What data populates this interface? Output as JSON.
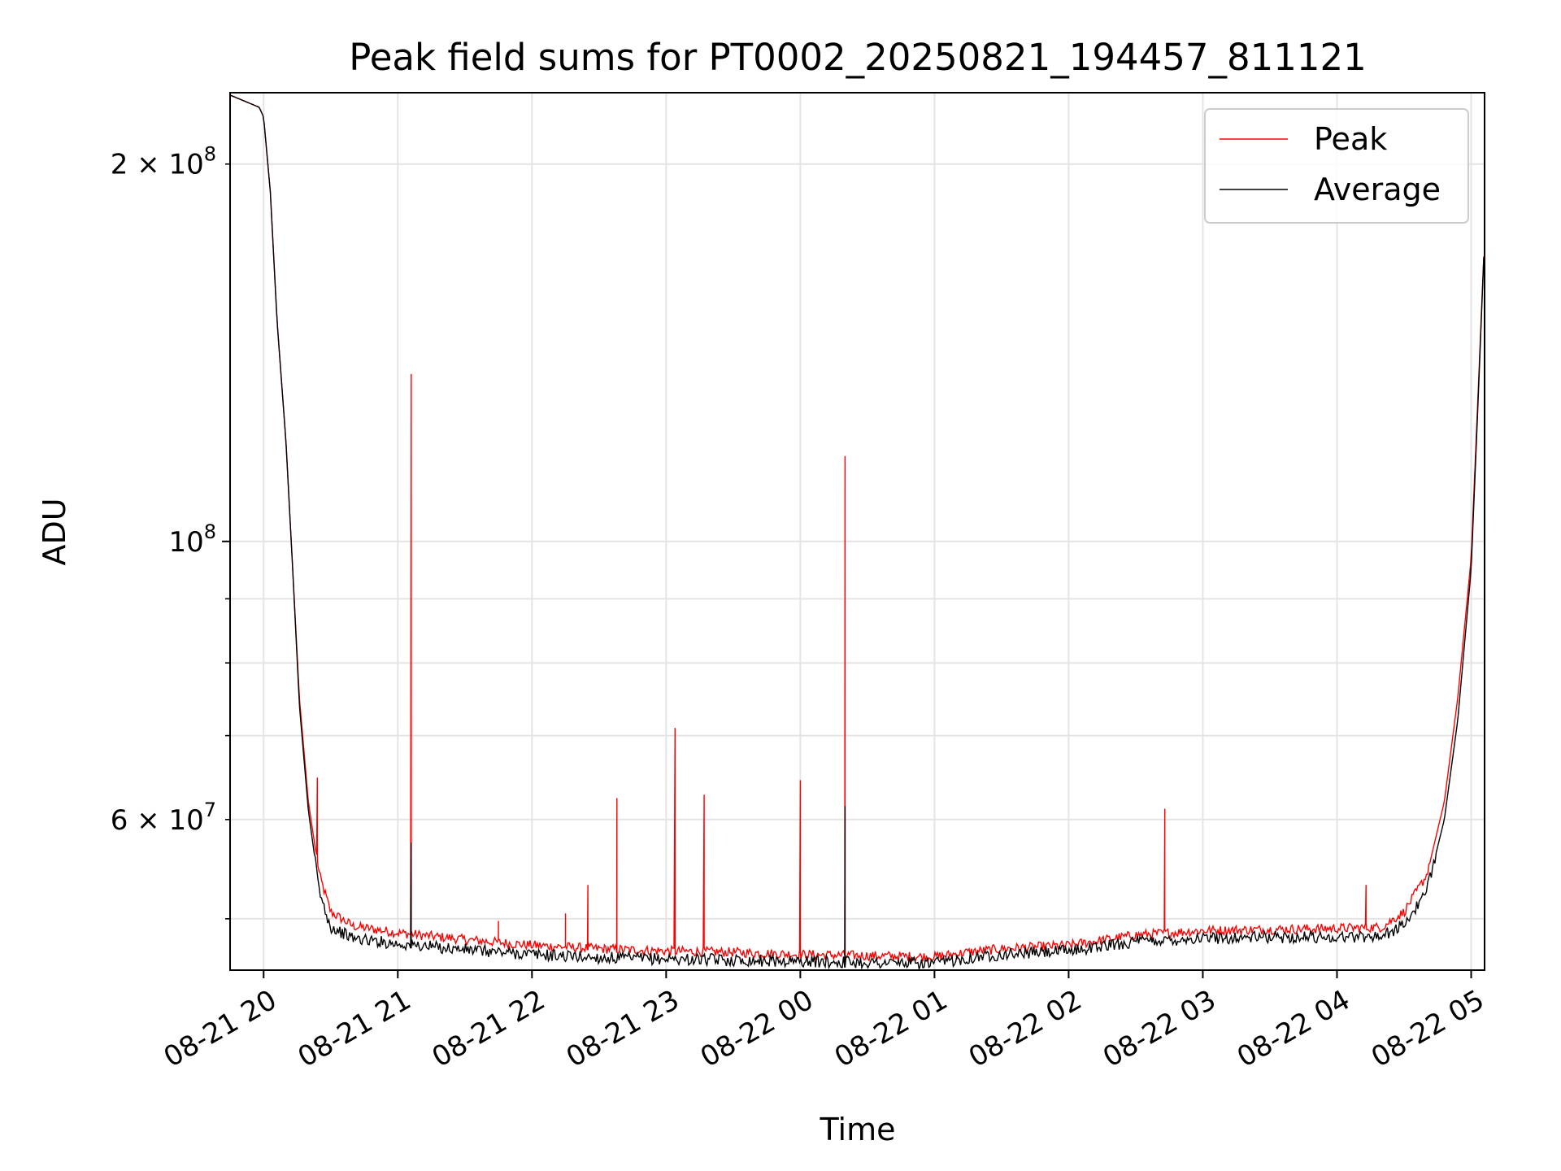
{
  "chart_data": {
    "type": "line",
    "title": "Peak field sums for PT0002_20250821_194457_811121",
    "xlabel": "Time",
    "ylabel": "ADU",
    "yscale": "log",
    "xlim": [
      "2025-08-21 19:45",
      "2025-08-22 05:06"
    ],
    "ylim": [
      45500000,
      228000000
    ],
    "grid": true,
    "legend_position": "top-right",
    "x_ticks": [
      {
        "t": "2025-08-21 20:00",
        "label": "08-21 20"
      },
      {
        "t": "2025-08-21 21:00",
        "label": "08-21 21"
      },
      {
        "t": "2025-08-21 22:00",
        "label": "08-21 22"
      },
      {
        "t": "2025-08-21 23:00",
        "label": "08-21 23"
      },
      {
        "t": "2025-08-22 00:00",
        "label": "08-22 00"
      },
      {
        "t": "2025-08-22 01:00",
        "label": "08-22 01"
      },
      {
        "t": "2025-08-22 02:00",
        "label": "08-22 02"
      },
      {
        "t": "2025-08-22 03:00",
        "label": "08-22 03"
      },
      {
        "t": "2025-08-22 04:00",
        "label": "08-22 04"
      },
      {
        "t": "2025-08-22 05:00",
        "label": "08-22 05"
      }
    ],
    "y_major_ticks": [
      {
        "v": 100000000,
        "mantissa": "",
        "exp": "8"
      }
    ],
    "y_minor_ticks": [
      {
        "v": 60000000,
        "mantissa": "6",
        "exp": "7"
      },
      {
        "v": 200000000,
        "mantissa": "2",
        "exp": "8"
      }
    ],
    "y_minor_unlabeled": [
      50000000,
      70000000,
      80000000,
      90000000
    ],
    "series": [
      {
        "name": "Peak",
        "color": "#ff0000",
        "baseline": [
          [
            "2025-08-21 19:45",
            227000000
          ],
          [
            "2025-08-21 19:58",
            222000000
          ],
          [
            "2025-08-21 20:00",
            218000000
          ],
          [
            "2025-08-21 20:03",
            190000000
          ],
          [
            "2025-08-21 20:06",
            150000000
          ],
          [
            "2025-08-21 20:10",
            120000000
          ],
          [
            "2025-08-21 20:13",
            95000000
          ],
          [
            "2025-08-21 20:16",
            75000000
          ],
          [
            "2025-08-21 20:20",
            62000000
          ],
          [
            "2025-08-21 20:25",
            54000000
          ],
          [
            "2025-08-21 20:30",
            50500000
          ],
          [
            "2025-08-21 20:40",
            49200000
          ],
          [
            "2025-08-21 21:00",
            48600000
          ],
          [
            "2025-08-21 21:30",
            48000000
          ],
          [
            "2025-08-21 22:00",
            47500000
          ],
          [
            "2025-08-21 22:30",
            47200000
          ],
          [
            "2025-08-21 23:00",
            47000000
          ],
          [
            "2025-08-21 23:30",
            46900000
          ],
          [
            "2025-08-22 00:00",
            46700000
          ],
          [
            "2025-08-22 00:30",
            46600000
          ],
          [
            "2025-08-22 01:00",
            46500000
          ],
          [
            "2025-08-22 01:15",
            46900000
          ],
          [
            "2025-08-22 01:30",
            47200000
          ],
          [
            "2025-08-22 02:00",
            47500000
          ],
          [
            "2025-08-22 02:30",
            48400000
          ],
          [
            "2025-08-22 03:00",
            48800000
          ],
          [
            "2025-08-22 03:30",
            48900000
          ],
          [
            "2025-08-22 04:00",
            49000000
          ],
          [
            "2025-08-22 04:20",
            49100000
          ],
          [
            "2025-08-22 04:30",
            50500000
          ],
          [
            "2025-08-22 04:40",
            54000000
          ],
          [
            "2025-08-22 04:48",
            62000000
          ],
          [
            "2025-08-22 04:54",
            75000000
          ],
          [
            "2025-08-22 05:00",
            97000000
          ],
          [
            "2025-08-22 05:03",
            130000000
          ],
          [
            "2025-08-22 05:06",
            175000000
          ]
        ],
        "spikes": [
          [
            "2025-08-21 20:24",
            64800000
          ],
          [
            "2025-08-21 21:06",
            136000000
          ],
          [
            "2025-08-21 21:45",
            49800000
          ],
          [
            "2025-08-21 22:15",
            50500000
          ],
          [
            "2025-08-21 22:25",
            53200000
          ],
          [
            "2025-08-21 22:38",
            62400000
          ],
          [
            "2025-08-21 23:04",
            71000000
          ],
          [
            "2025-08-21 23:17",
            62800000
          ],
          [
            "2025-08-22 00:00",
            64500000
          ],
          [
            "2025-08-22 00:20",
            117000000
          ],
          [
            "2025-08-22 02:43",
            61200000
          ],
          [
            "2025-08-22 04:13",
            53200000
          ]
        ]
      },
      {
        "name": "Average",
        "color": "#000000",
        "baseline": [
          [
            "2025-08-21 19:45",
            227000000
          ],
          [
            "2025-08-21 19:58",
            222000000
          ],
          [
            "2025-08-21 20:00",
            218000000
          ],
          [
            "2025-08-21 20:03",
            190000000
          ],
          [
            "2025-08-21 20:06",
            150000000
          ],
          [
            "2025-08-21 20:10",
            120000000
          ],
          [
            "2025-08-21 20:13",
            95000000
          ],
          [
            "2025-08-21 20:16",
            74000000
          ],
          [
            "2025-08-21 20:20",
            61000000
          ],
          [
            "2025-08-21 20:25",
            52500000
          ],
          [
            "2025-08-21 20:30",
            49300000
          ],
          [
            "2025-08-21 20:40",
            48300000
          ],
          [
            "2025-08-21 21:00",
            47800000
          ],
          [
            "2025-08-21 21:30",
            47300000
          ],
          [
            "2025-08-21 22:00",
            46900000
          ],
          [
            "2025-08-21 22:30",
            46600000
          ],
          [
            "2025-08-21 23:00",
            46500000
          ],
          [
            "2025-08-21 23:30",
            46400000
          ],
          [
            "2025-08-22 00:00",
            46300000
          ],
          [
            "2025-08-22 00:30",
            46200000
          ],
          [
            "2025-08-22 01:00",
            46100000
          ],
          [
            "2025-08-22 01:15",
            46600000
          ],
          [
            "2025-08-22 01:30",
            46900000
          ],
          [
            "2025-08-22 02:00",
            47200000
          ],
          [
            "2025-08-22 02:30",
            48000000
          ],
          [
            "2025-08-22 03:00",
            48300000
          ],
          [
            "2025-08-22 03:30",
            48400000
          ],
          [
            "2025-08-22 04:00",
            48400000
          ],
          [
            "2025-08-22 04:20",
            48500000
          ],
          [
            "2025-08-22 04:30",
            49500000
          ],
          [
            "2025-08-22 04:40",
            52500000
          ],
          [
            "2025-08-22 04:48",
            60000000
          ],
          [
            "2025-08-22 04:54",
            72000000
          ],
          [
            "2025-08-22 05:00",
            95000000
          ],
          [
            "2025-08-22 05:03",
            128000000
          ],
          [
            "2025-08-22 05:06",
            175000000
          ]
        ],
        "spikes": [
          [
            "2025-08-21 21:06",
            57500000
          ],
          [
            "2025-08-22 00:20",
            61500000
          ]
        ]
      }
    ]
  }
}
